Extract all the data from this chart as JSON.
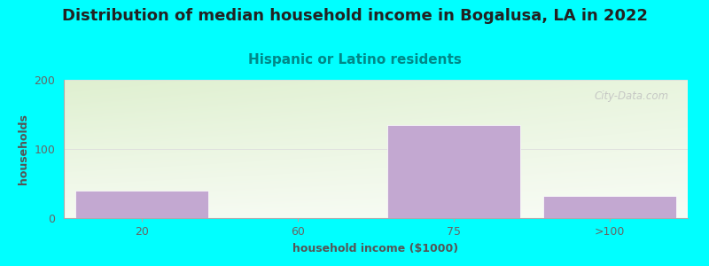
{
  "title": "Distribution of median household income in Bogalusa, LA in 2022",
  "subtitle": "Hispanic or Latino residents",
  "xlabel": "household income ($1000)",
  "ylabel": "households",
  "background_color": "#00FFFF",
  "plot_bg_gradient_topleft": "#dff0d0",
  "plot_bg_gradient_bottomright": "#ffffff",
  "bar_color": "#c3a8d1",
  "bar_edge_color": "#ffffff",
  "categories": [
    "20",
    "60",
    "75",
    ">100"
  ],
  "values": [
    40,
    0,
    135,
    32
  ],
  "ylim": [
    0,
    200
  ],
  "yticks": [
    0,
    100,
    200
  ],
  "title_fontsize": 13,
  "title_color": "#222222",
  "subtitle_fontsize": 11,
  "subtitle_color": "#008888",
  "axis_label_fontsize": 9,
  "axis_label_color": "#555555",
  "tick_label_fontsize": 9,
  "tick_label_color": "#666666",
  "watermark_text": "City-Data.com",
  "watermark_color": "#c0c0c0",
  "bar_width": 0.85
}
